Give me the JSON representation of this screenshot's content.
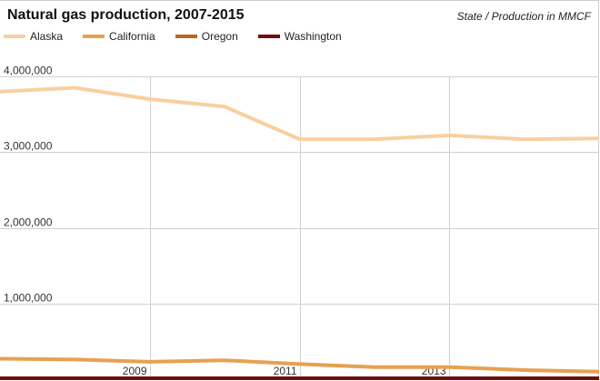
{
  "chart_data": {
    "type": "line",
    "title": "Natural gas production, 2007-2015",
    "subtitle": "State / Production in MMCF",
    "xlabel": "",
    "ylabel": "",
    "x": [
      2007,
      2008,
      2009,
      2010,
      2011,
      2012,
      2013,
      2014,
      2015
    ],
    "xlim": [
      2007,
      2015
    ],
    "ylim": [
      0,
      4000000
    ],
    "x_tick_values": [
      2009,
      2011,
      2013
    ],
    "x_tick_labels": [
      "2009",
      "2011",
      "2013"
    ],
    "y_tick_values": [
      1000000,
      2000000,
      3000000,
      4000000
    ],
    "y_tick_labels": [
      "1,000,000",
      "2,000,000",
      "3,000,000",
      "4,000,000"
    ],
    "grid": true,
    "legend_position": "top-left",
    "series": [
      {
        "name": "Alaska",
        "color": "#f8cfa0",
        "values": [
          3800000,
          3850000,
          3700000,
          3600000,
          3170000,
          3170000,
          3220000,
          3170000,
          3180000
        ]
      },
      {
        "name": "California",
        "color": "#e8a050",
        "values": [
          270000,
          260000,
          230000,
          250000,
          200000,
          160000,
          160000,
          120000,
          100000
        ]
      },
      {
        "name": "Oregon",
        "color": "#c0651c",
        "values": [
          800,
          700,
          600,
          1400,
          1300,
          800,
          800,
          800,
          800
        ]
      },
      {
        "name": "Washington",
        "color": "#6e0f0f",
        "values": [
          0,
          0,
          0,
          0,
          0,
          0,
          0,
          0,
          0
        ]
      }
    ]
  }
}
